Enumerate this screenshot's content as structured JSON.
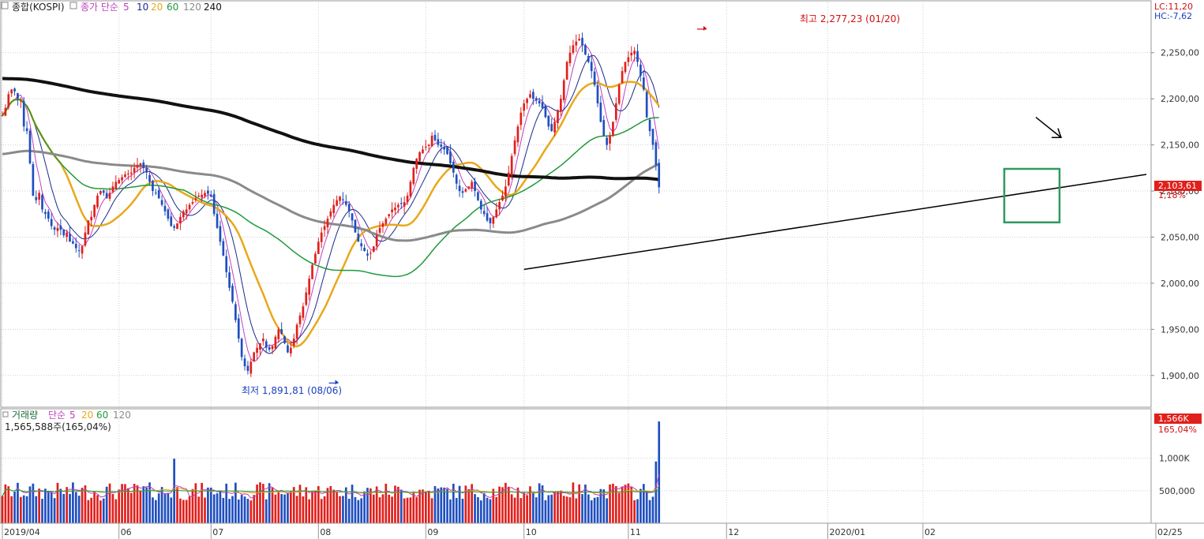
{
  "colors": {
    "up": "#e0201c",
    "down": "#1f4fbf",
    "ma5": "#c040c0",
    "ma10": "#1b2a8a",
    "ma20": "#e8a81a",
    "ma60": "#1e9a3a",
    "ma120": "#8a8a8a",
    "ma240": "#111111",
    "grid": "#cfcfcf",
    "box": "#2e9a5c",
    "label_red": "#d01010",
    "label_blue": "#1a3fc0"
  },
  "price_panel": {
    "title": "종합(KOSPI)",
    "legend_prefix": "종가 단순",
    "legend_periods": [
      "5",
      "10",
      "20",
      "60",
      "120",
      "240"
    ],
    "lc_label": "LC:11,20",
    "hc_label": "HC:-7,62",
    "current_price_label": "2,103,61",
    "change_pct_label": "1,18%",
    "high_annotation": "최고 2,277,23 (01/20)",
    "low_annotation": "최저 1,891,81 (08/06)"
  },
  "volume_panel": {
    "title": "거래량",
    "legend_prefix": "단순",
    "legend_periods": [
      "5",
      "20",
      "60",
      "120"
    ],
    "current_volume_text": "1,565,588주(165,04%)",
    "current_volume_label": "1,566K",
    "change_pct_label": "165,04%"
  },
  "chart_data": [
    {
      "type": "candlestick",
      "title": "종합(KOSPI)",
      "y_ticks": [
        "2,250,00",
        "2,200,00",
        "2,150,00",
        "2,100,00",
        "2,050,00",
        "2,000,00",
        "1,950,00",
        "1,900,00"
      ],
      "ylim": [
        1875,
        2290
      ],
      "x_ticks": [
        "2019/04",
        "06",
        "07",
        "08",
        "09",
        "10",
        "11",
        "12",
        "2020/01",
        "02",
        "02/25"
      ],
      "x_tick_bars": [
        0,
        38,
        68,
        103,
        138,
        170,
        204,
        236,
        269,
        300,
        336
      ],
      "num_bars": 336,
      "closes": [
        2182,
        2190,
        2205,
        2210,
        2208,
        2200,
        2198,
        2170,
        2165,
        2130,
        2095,
        2090,
        2098,
        2080,
        2075,
        2070,
        2062,
        2058,
        2060,
        2058,
        2052,
        2055,
        2045,
        2043,
        2038,
        2035,
        2040,
        2055,
        2068,
        2072,
        2085,
        2095,
        2100,
        2098,
        2092,
        2098,
        2105,
        2110,
        2112,
        2115,
        2118,
        2119,
        2120,
        2125,
        2128,
        2130,
        2125,
        2120,
        2110,
        2100,
        2098,
        2092,
        2085,
        2078,
        2070,
        2062,
        2060,
        2065,
        2072,
        2078,
        2080,
        2085,
        2088,
        2092,
        2095,
        2096,
        2098,
        2097,
        2094,
        2075,
        2060,
        2045,
        2030,
        2012,
        1995,
        1980,
        1960,
        1940,
        1920,
        1910,
        1905,
        1915,
        1925,
        1930,
        1935,
        1940,
        1930,
        1928,
        1932,
        1942,
        1950,
        1945,
        1935,
        1925,
        1930,
        1940,
        1955,
        1965,
        1975,
        1990,
        2005,
        2020,
        2032,
        2045,
        2055,
        2062,
        2070,
        2078,
        2085,
        2090,
        2094,
        2090,
        2085,
        2078,
        2068,
        2055,
        2045,
        2040,
        2035,
        2030,
        2033,
        2040,
        2052,
        2060,
        2065,
        2070,
        2075,
        2080,
        2082,
        2085,
        2086,
        2088,
        2095,
        2110,
        2125,
        2135,
        2142,
        2145,
        2148,
        2150,
        2160,
        2155,
        2150,
        2148,
        2145,
        2140,
        2130,
        2120,
        2108,
        2100,
        2098,
        2102,
        2105,
        2110,
        2100,
        2090,
        2080,
        2075,
        2068,
        2065,
        2072,
        2080,
        2088,
        2095,
        2105,
        2120,
        2138,
        2155,
        2170,
        2185,
        2195,
        2200,
        2205,
        2200,
        2198,
        2195,
        2190,
        2180,
        2170,
        2165,
        2175,
        2188,
        2200,
        2220,
        2240,
        2250,
        2258,
        2262,
        2265,
        2258,
        2248,
        2240,
        2230,
        2215,
        2195,
        2175,
        2160,
        2150,
        2160,
        2175,
        2195,
        2215,
        2230,
        2240,
        2245,
        2250,
        2252,
        2240,
        2225,
        2210,
        2180,
        2165,
        2150,
        2128,
        2104
      ],
      "series": [
        {
          "name": "5"
        },
        {
          "name": "10"
        },
        {
          "name": "20"
        },
        {
          "name": "60"
        },
        {
          "name": "120"
        },
        {
          "name": "240"
        }
      ],
      "annotations": [
        {
          "text": "최고 2,277,23 (01/20)",
          "bar": 230,
          "value": 2277.23
        },
        {
          "text": "최저 1,891,81 (08/06)",
          "bar": 110,
          "value": 1891.81
        }
      ]
    },
    {
      "type": "bar",
      "title": "거래량",
      "y_ticks": [
        "1,000K",
        "500,000"
      ],
      "ylim": [
        0,
        1700000
      ],
      "last_value": 1565588
    }
  ]
}
